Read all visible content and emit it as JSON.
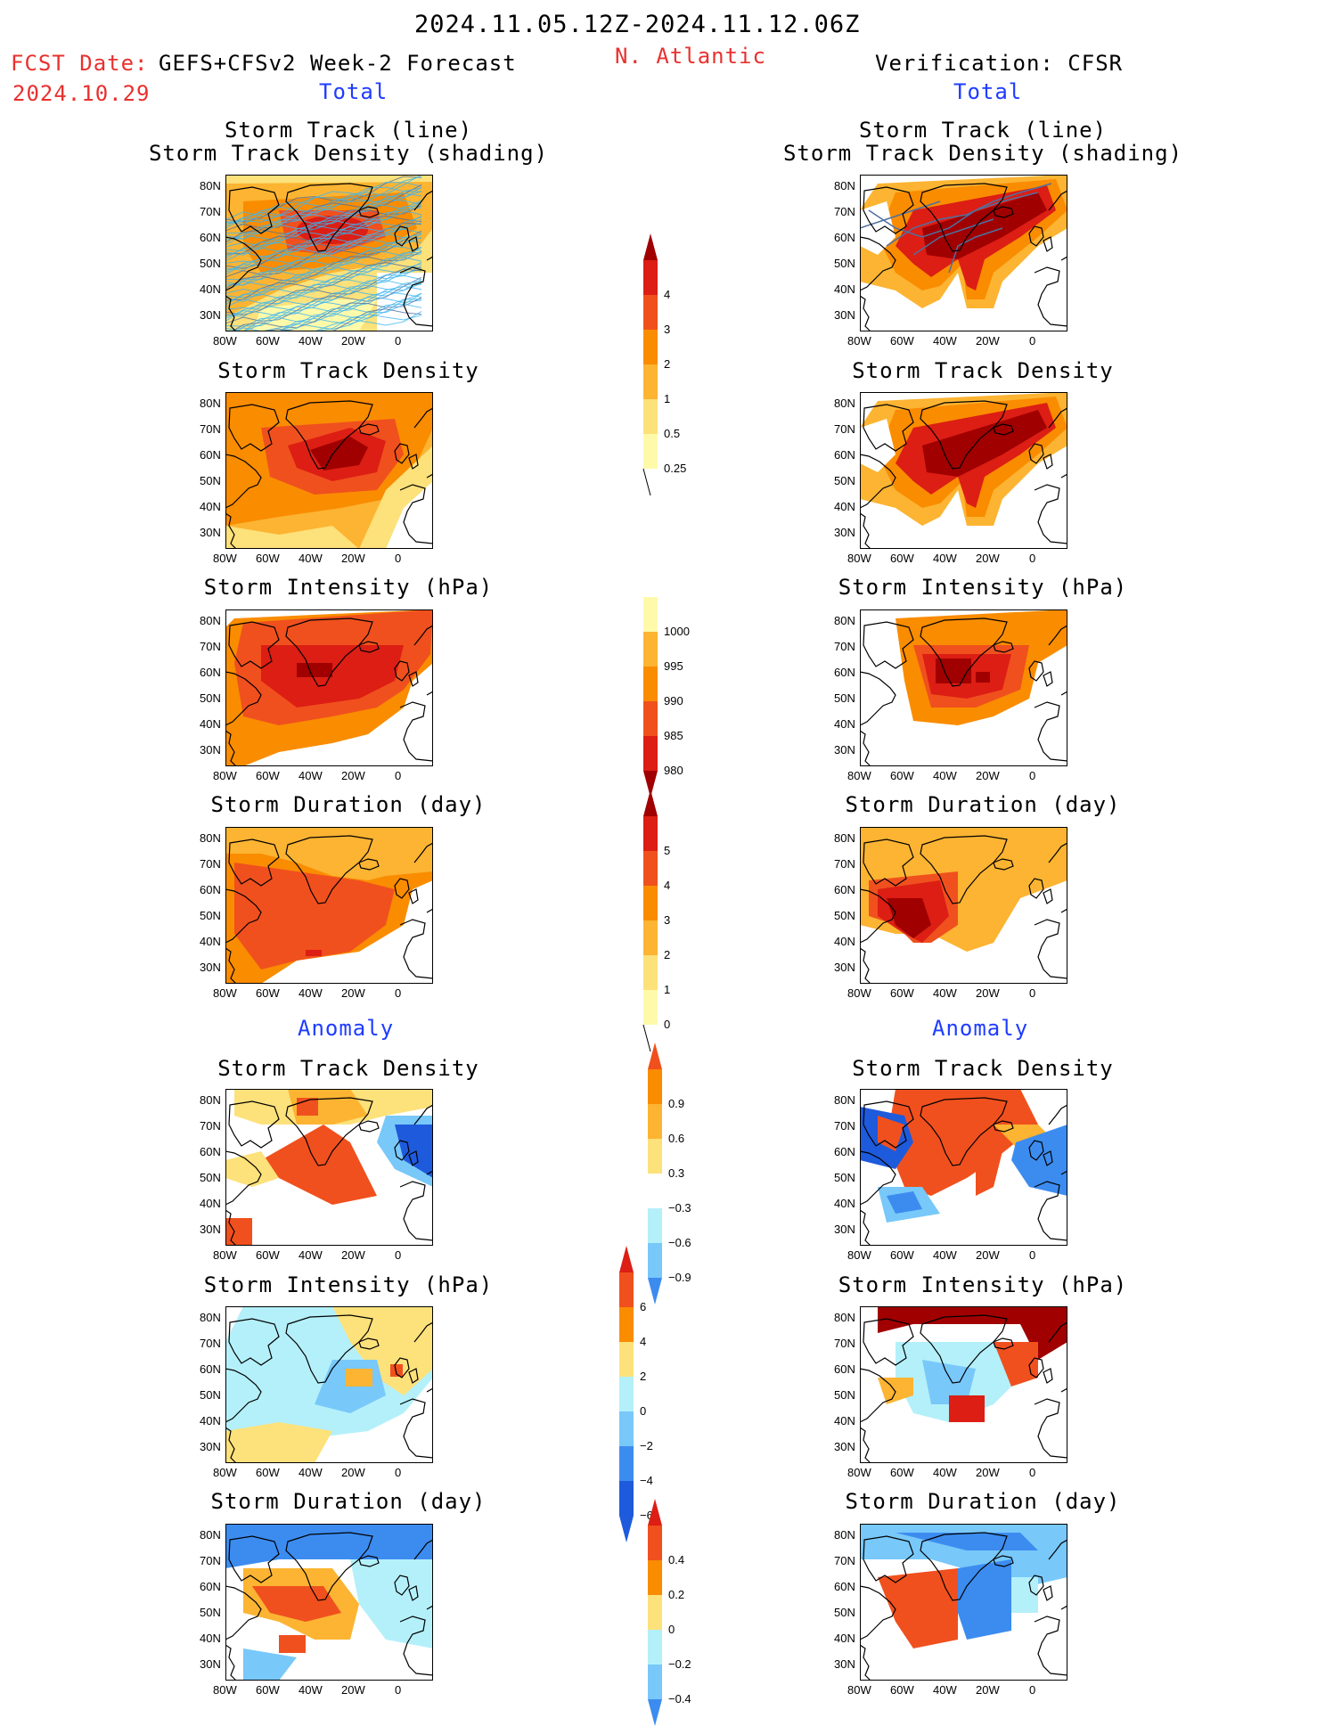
{
  "header": {
    "period": "2024.11.05.12Z-2024.11.12.06Z",
    "region": "N. Atlantic",
    "fcst_label": "FCST Date:",
    "fcst_model": "GEFS+CFSv2 Week-2 Forecast",
    "fcst_date": "2024.10.29",
    "verification": "Verification: CFSR",
    "total_left": "Total",
    "total_right": "Total",
    "anomaly_left": "Anomaly",
    "anomaly_right": "Anomaly"
  },
  "panel_titles": {
    "track_line": "Storm Track (line)",
    "track_density_shading": "Storm Track Density (shading)",
    "track_density": "Storm Track Density",
    "intensity": "Storm Intensity (hPa)",
    "duration": "Storm Duration (day)"
  },
  "axis": {
    "lat_ticks": [
      "80N",
      "70N",
      "60N",
      "50N",
      "40N",
      "30N"
    ],
    "lon_ticks": [
      "80W",
      "60W",
      "40W",
      "20W",
      "0"
    ]
  },
  "colorbars": {
    "density": [
      "4",
      "3",
      "2",
      "1",
      "0.5",
      "0.25"
    ],
    "intensity": [
      "1000",
      "995",
      "990",
      "985",
      "980"
    ],
    "duration": [
      "5",
      "4",
      "3",
      "2",
      "1",
      "0"
    ],
    "density_anom": [
      "0.9",
      "0.6",
      "0.3",
      "−0.3",
      "−0.6",
      "−0.9"
    ],
    "intensity_anom": [
      "6",
      "4",
      "2",
      "0",
      "−2",
      "−4",
      "−6"
    ],
    "duration_anom": [
      "0.4",
      "0.2",
      "0",
      "−0.2",
      "−0.4"
    ]
  },
  "colors": {
    "dark_red": "#a00000",
    "red": "#dc1e14",
    "red_orange": "#f0501e",
    "orange": "#fa8c00",
    "light_orange": "#fcb432",
    "yellow": "#fde17a",
    "pale_yellow": "#fffaaa",
    "white": "#ffffff",
    "pale_blue": "#b4f0fa",
    "light_blue": "#78c8fa",
    "blue": "#3c8cf0",
    "deep_blue": "#1e5adc",
    "track_line_blue": "#3cb4f0",
    "track_line_dark": "#5070a0"
  }
}
